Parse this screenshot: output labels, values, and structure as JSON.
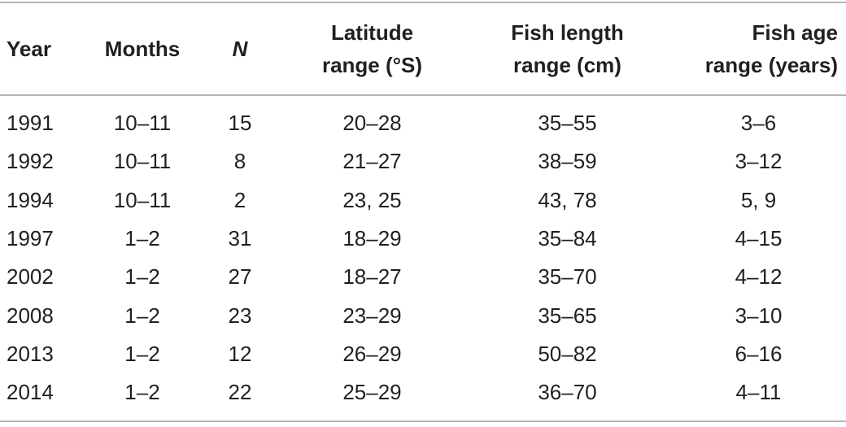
{
  "table": {
    "header": [
      [
        "Year"
      ],
      [
        "Months"
      ],
      [
        "N"
      ],
      [
        "Latitude",
        "range (°S)"
      ],
      [
        "Fish length",
        "range (cm)"
      ],
      [
        "Fish age",
        "range (years)"
      ]
    ],
    "rows": [
      [
        "1991",
        "10–11",
        "15",
        "20–28",
        "35–55",
        "3–6"
      ],
      [
        "1992",
        "10–11",
        "8",
        "21–27",
        "38–59",
        "3–12"
      ],
      [
        "1994",
        "10–11",
        "2",
        "23, 25",
        "43, 78",
        "5, 9"
      ],
      [
        "1997",
        "1–2",
        "31",
        "18–29",
        "35–84",
        "4–15"
      ],
      [
        "2002",
        "1–2",
        "27",
        "18–27",
        "35–70",
        "4–12"
      ],
      [
        "2008",
        "1–2",
        "23",
        "23–29",
        "35–65",
        "3–10"
      ],
      [
        "2013",
        "1–2",
        "12",
        "26–29",
        "50–82",
        "6–16"
      ],
      [
        "2014",
        "1–2",
        "22",
        "25–29",
        "36–70",
        "4–11"
      ]
    ]
  }
}
